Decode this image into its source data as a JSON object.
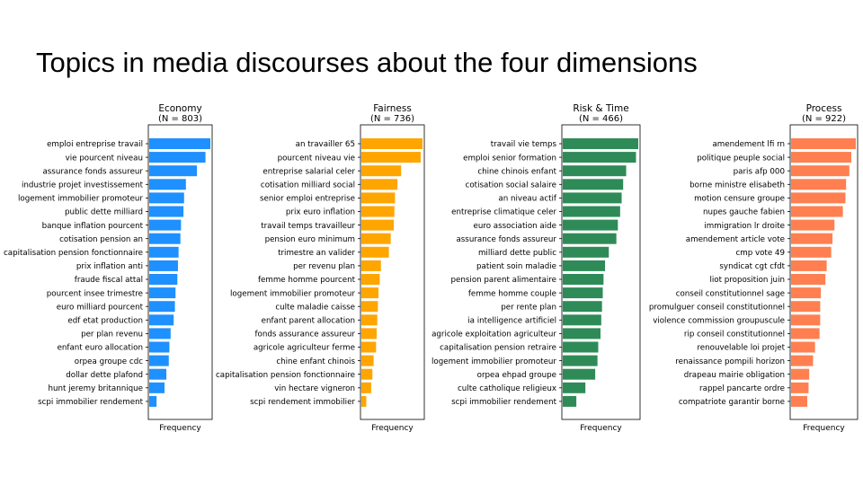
{
  "slide": {
    "title": "Topics in media discourses about the four dimensions"
  },
  "chart_data": [
    {
      "type": "bar",
      "orientation": "horizontal",
      "title": "Economy",
      "subtitle": "(N = 803)",
      "xlabel": "Frequency",
      "ylabel": "",
      "color": "#1e90ff",
      "grid": false,
      "categories": [
        "emploi entreprise travail",
        "vie pourcent niveau",
        "assurance fonds assureur",
        "industrie projet investissement",
        "logement immobilier promoteur",
        "public dette milliard",
        "banque inflation pourcent",
        "cotisation pension an",
        "capitalisation pension fonctionnaire",
        "prix inflation anti",
        "fraude fiscal attal",
        "pourcent insee trimestre",
        "euro milliard pourcent",
        "edf etat production",
        "per plan revenu",
        "enfant euro allocation",
        "orpea groupe cdc",
        "dollar dette plafond",
        "hunt jeremy britannique",
        "scpi immobilier rendement"
      ],
      "values": [
        100,
        92,
        78,
        60,
        57,
        56,
        52,
        51,
        48,
        47,
        46,
        43,
        42,
        40,
        35,
        33,
        32,
        28,
        25,
        12
      ],
      "xlim": [
        0,
        110
      ]
    },
    {
      "type": "bar",
      "orientation": "horizontal",
      "title": "Fairness",
      "subtitle": "(N = 736)",
      "xlabel": "Frequency",
      "ylabel": "",
      "color": "#ffa500",
      "grid": false,
      "categories": [
        "an travailler 65",
        "pourcent niveau vie",
        "entreprise salarial celer",
        "cotisation milliard social",
        "senior emploi entreprise",
        "prix euro inflation",
        "travail temps travailleur",
        "pension euro minimum",
        "trimestre an valider",
        "per revenu plan",
        "femme homme pourcent",
        "logement immobilier promoteur",
        "culte maladie caisse",
        "enfant parent allocation",
        "fonds assurance assureur",
        "agricole agriculteur ferme",
        "chine enfant chinois",
        "capitalisation pension fonctionnaire",
        "vin hectare vigneron",
        "scpi rendement immobilier"
      ],
      "values": [
        100,
        97,
        65,
        59,
        55,
        54,
        53,
        48,
        45,
        32,
        30,
        28,
        27,
        26,
        25,
        24,
        20,
        18,
        16,
        8
      ],
      "xlim": [
        0,
        110
      ]
    },
    {
      "type": "bar",
      "orientation": "horizontal",
      "title": "Risk & Time",
      "subtitle": "(N = 466)",
      "xlabel": "Frequency",
      "ylabel": "",
      "color": "#2e8b57",
      "grid": false,
      "categories": [
        "travail vie temps",
        "emploi senior formation",
        "chine chinois enfant",
        "cotisation social salaire",
        "an niveau actif",
        "entreprise climatique celer",
        "euro association aide",
        "assurance fonds assureur",
        "milliard dette public",
        "patient soin maladie",
        "pension parent alimentaire",
        "femme homme couple",
        "per rente plan",
        "ia intelligence artificiel",
        "agricole exploitation agriculteur",
        "capitalisation pension retraire",
        "logement immobilier promoteur",
        "orpea ehpad groupe",
        "culte catholique religieux",
        "scpi immobilier rendement"
      ],
      "values": [
        100,
        97,
        84,
        80,
        78,
        76,
        73,
        71,
        61,
        56,
        54,
        53,
        52,
        51,
        50,
        47,
        46,
        43,
        30,
        18
      ],
      "xlim": [
        0,
        110
      ]
    },
    {
      "type": "bar",
      "orientation": "horizontal",
      "title": "Process",
      "subtitle": "(N = 922)",
      "xlabel": "Frequency",
      "ylabel": "",
      "color": "#ff7f50",
      "grid": false,
      "categories": [
        "amendement lfi rn",
        "politique peuple social",
        "paris afp 000",
        "borne ministre elisabeth",
        "motion censure groupe",
        "nupes gauche fabien",
        "immigration lr droite",
        "amendement article vote",
        "cmp vote 49",
        "syndicat cgt cfdt",
        "liot proposition juin",
        "conseil constitutionnel sage",
        "promulguer conseil constitutionnel",
        "violence commission groupuscule",
        "rip conseil constitutionnel",
        "renouvelable loi projet",
        "renaissance pompili horizon",
        "drapeau mairie obligation",
        "rappel pancarte ordre",
        "compatriote garantir borne"
      ],
      "values": [
        100,
        93,
        90,
        85,
        84,
        80,
        67,
        64,
        62,
        55,
        53,
        46,
        45,
        45,
        44,
        37,
        34,
        28,
        27,
        25
      ],
      "xlim": [
        0,
        110
      ]
    }
  ]
}
